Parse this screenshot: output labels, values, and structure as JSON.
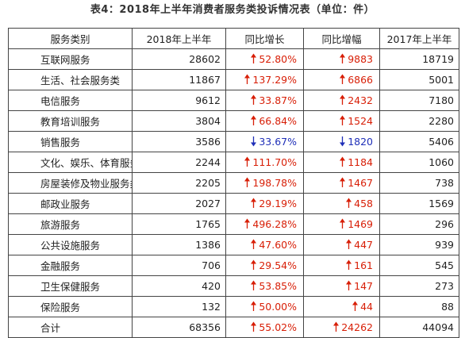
{
  "title": "表4：2018年上半年消费者服务类投诉情况表（单位：件）",
  "headers": [
    "服务类别",
    "2018年上半年",
    "同比增长",
    "同比增幅",
    "2017年上半年"
  ],
  "colors": {
    "up": "#d81e06",
    "down": "#1f2fb8",
    "border": "#444444"
  },
  "rows": [
    {
      "category": "互联网服务",
      "h2018": "28602",
      "growth_pct": "52.80%",
      "growth_abs": "9883",
      "h2017": "18719",
      "dir": "up"
    },
    {
      "category": "生活、社会服务类",
      "h2018": "11867",
      "growth_pct": "137.29%",
      "growth_abs": "6866",
      "h2017": "5001",
      "dir": "up"
    },
    {
      "category": "电信服务",
      "h2018": "9612",
      "growth_pct": "33.87%",
      "growth_abs": "2432",
      "h2017": "7180",
      "dir": "up"
    },
    {
      "category": "教育培训服务",
      "h2018": "3804",
      "growth_pct": "66.84%",
      "growth_abs": "1524",
      "h2017": "2280",
      "dir": "up"
    },
    {
      "category": "销售服务",
      "h2018": "3586",
      "growth_pct": "33.67%",
      "growth_abs": "1820",
      "h2017": "5406",
      "dir": "down"
    },
    {
      "category": "文化、娱乐、体育服务",
      "h2018": "2244",
      "growth_pct": "111.70%",
      "growth_abs": "1184",
      "h2017": "1060",
      "dir": "up"
    },
    {
      "category": "房屋装修及物业服务类",
      "h2018": "2205",
      "growth_pct": "198.78%",
      "growth_abs": "1467",
      "h2017": "738",
      "dir": "up"
    },
    {
      "category": "邮政业服务",
      "h2018": "2027",
      "growth_pct": "29.19%",
      "growth_abs": "458",
      "h2017": "1569",
      "dir": "up"
    },
    {
      "category": "旅游服务",
      "h2018": "1765",
      "growth_pct": "496.28%",
      "growth_abs": "1469",
      "h2017": "296",
      "dir": "up"
    },
    {
      "category": "公共设施服务",
      "h2018": "1386",
      "growth_pct": "47.60%",
      "growth_abs": "447",
      "h2017": "939",
      "dir": "up"
    },
    {
      "category": "金融服务",
      "h2018": "706",
      "growth_pct": "29.54%",
      "growth_abs": "161",
      "h2017": "545",
      "dir": "up"
    },
    {
      "category": "卫生保健服务",
      "h2018": "420",
      "growth_pct": "53.85%",
      "growth_abs": "147",
      "h2017": "273",
      "dir": "up"
    },
    {
      "category": "保险服务",
      "h2018": "132",
      "growth_pct": "50.00%",
      "growth_abs": "44",
      "h2017": "88",
      "dir": "up"
    },
    {
      "category": "合计",
      "h2018": "68356",
      "growth_pct": "55.02%",
      "growth_abs": "24262",
      "h2017": "44094",
      "dir": "up"
    }
  ]
}
